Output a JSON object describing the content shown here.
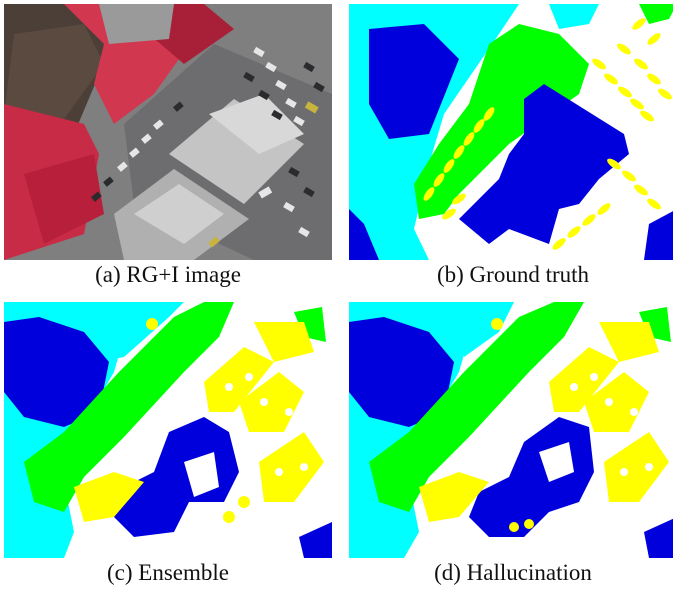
{
  "figure": {
    "panels": [
      {
        "id": "a",
        "caption": "(a) RG+I image"
      },
      {
        "id": "b",
        "caption": "(b) Ground truth"
      },
      {
        "id": "c",
        "caption": "(c) Ensemble"
      },
      {
        "id": "d",
        "caption": "(d) Hallucination"
      }
    ]
  },
  "palette": {
    "building": "#0000dd",
    "low_vegetation": "#00ffff",
    "tree": "#00ff00",
    "car": "#ffff00",
    "impervious": "#ffffff",
    "vegetation_ir": "#d8304a",
    "road_gray": "#8a8a8a",
    "roof_gray": "#b5b5b5"
  }
}
